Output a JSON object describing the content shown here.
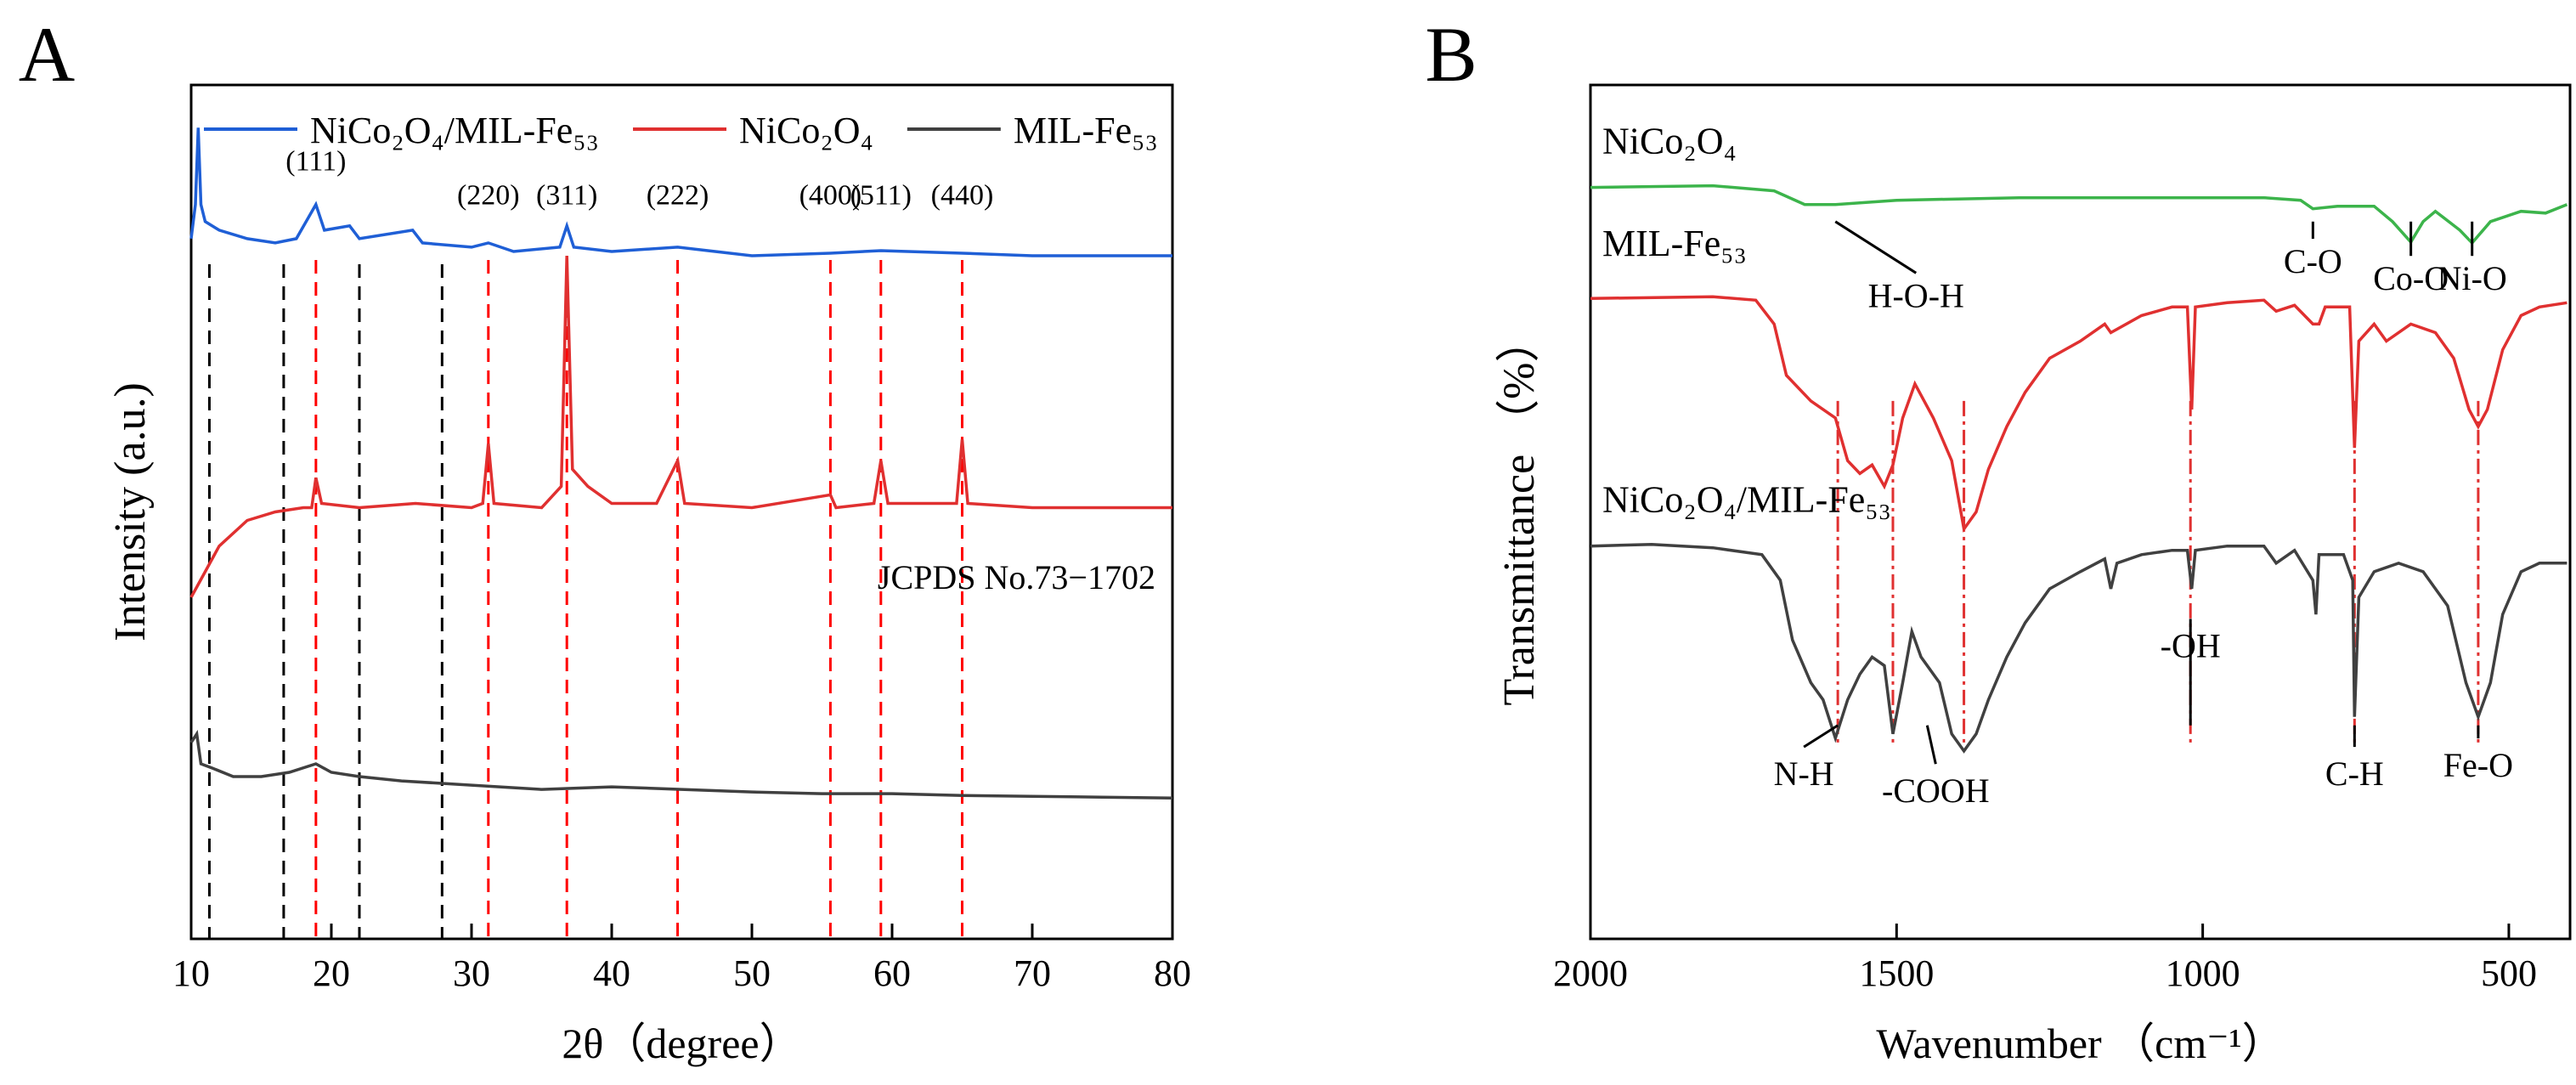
{
  "chart_data": [
    {
      "panel_label": "A",
      "type": "line",
      "xlabel": "2θ（degree）",
      "ylabel": "Intensity (a.u.)",
      "xlim": [
        10,
        80
      ],
      "xticks": [
        10,
        20,
        30,
        40,
        50,
        60,
        70,
        80
      ],
      "grid": false,
      "legend_position": "top",
      "colors": {
        "composite": "#1f5fd6",
        "nico": "#e03030",
        "mil": "#404040",
        "ref_black": "#000000",
        "ref_red": "#ff0000"
      },
      "legend": [
        {
          "name": "NiCo₂O₄/MIL-Fe₅₃",
          "color": "#1f5fd6"
        },
        {
          "name": "NiCo₂O₄",
          "color": "#e03030"
        },
        {
          "name": "MIL-Fe₅₃",
          "color": "#404040"
        }
      ],
      "series": [
        {
          "name": "NiCo₂O₄/MIL-Fe₅₃",
          "color": "#1f5fd6",
          "level": 0.8,
          "points": [
            [
              10.0,
              0.82
            ],
            [
              10.3,
              0.86
            ],
            [
              10.5,
              0.95
            ],
            [
              10.7,
              0.86
            ],
            [
              11,
              0.84
            ],
            [
              12,
              0.83
            ],
            [
              14,
              0.82
            ],
            [
              16,
              0.815
            ],
            [
              17.5,
              0.82
            ],
            [
              18.9,
              0.86
            ],
            [
              19.5,
              0.83
            ],
            [
              21.3,
              0.835
            ],
            [
              22,
              0.82
            ],
            [
              25.8,
              0.83
            ],
            [
              26.5,
              0.815
            ],
            [
              30,
              0.81
            ],
            [
              31.2,
              0.815
            ],
            [
              33,
              0.805
            ],
            [
              36.3,
              0.81
            ],
            [
              36.8,
              0.835
            ],
            [
              37.3,
              0.81
            ],
            [
              40,
              0.805
            ],
            [
              44.7,
              0.81
            ],
            [
              50,
              0.8
            ],
            [
              55.6,
              0.803
            ],
            [
              59.2,
              0.806
            ],
            [
              65,
              0.803
            ],
            [
              70,
              0.8
            ],
            [
              80,
              0.8
            ]
          ]
        },
        {
          "name": "NiCo₂O₄",
          "color": "#e03030",
          "level": 0.4,
          "points": [
            [
              10,
              0.4
            ],
            [
              11,
              0.43
            ],
            [
              12,
              0.46
            ],
            [
              14,
              0.49
            ],
            [
              16,
              0.5
            ],
            [
              18,
              0.505
            ],
            [
              18.6,
              0.505
            ],
            [
              18.9,
              0.54
            ],
            [
              19.3,
              0.51
            ],
            [
              22,
              0.505
            ],
            [
              26,
              0.51
            ],
            [
              30,
              0.505
            ],
            [
              30.8,
              0.51
            ],
            [
              31.2,
              0.58
            ],
            [
              31.6,
              0.51
            ],
            [
              35,
              0.505
            ],
            [
              36.4,
              0.53
            ],
            [
              36.8,
              0.8
            ],
            [
              37.2,
              0.55
            ],
            [
              38.3,
              0.53
            ],
            [
              40,
              0.51
            ],
            [
              43.2,
              0.51
            ],
            [
              44.7,
              0.56
            ],
            [
              45.2,
              0.51
            ],
            [
              50,
              0.505
            ],
            [
              55.6,
              0.52
            ],
            [
              56,
              0.505
            ],
            [
              58.7,
              0.51
            ],
            [
              59.2,
              0.56
            ],
            [
              59.7,
              0.51
            ],
            [
              64.6,
              0.51
            ],
            [
              65,
              0.585
            ],
            [
              65.4,
              0.51
            ],
            [
              70,
              0.505
            ],
            [
              75,
              0.505
            ],
            [
              80,
              0.505
            ]
          ]
        },
        {
          "name": "MIL-Fe₅₃",
          "color": "#404040",
          "level": 0.1,
          "points": [
            [
              10,
              0.23
            ],
            [
              10.4,
              0.24
            ],
            [
              10.7,
              0.205
            ],
            [
              11.5,
              0.2
            ],
            [
              13,
              0.19
            ],
            [
              15,
              0.19
            ],
            [
              17,
              0.195
            ],
            [
              18.9,
              0.205
            ],
            [
              20,
              0.195
            ],
            [
              22,
              0.19
            ],
            [
              25,
              0.185
            ],
            [
              30,
              0.18
            ],
            [
              35,
              0.175
            ],
            [
              40,
              0.178
            ],
            [
              45,
              0.175
            ],
            [
              50,
              0.172
            ],
            [
              55,
              0.17
            ],
            [
              60,
              0.17
            ],
            [
              65,
              0.168
            ],
            [
              70,
              0.167
            ],
            [
              75,
              0.166
            ],
            [
              80,
              0.165
            ]
          ]
        }
      ],
      "reference_lines": {
        "black": [
          11.3,
          16.6,
          22.0,
          27.9
        ],
        "red": [
          18.9,
          31.2,
          36.8,
          44.7,
          55.6,
          59.2,
          65.0
        ]
      },
      "annotations": [
        {
          "text": "(111)",
          "x": 18.9
        },
        {
          "text": "(220)",
          "x": 31.2
        },
        {
          "text": "(311)",
          "x": 36.8
        },
        {
          "text": "(222)",
          "x": 44.7
        },
        {
          "text": "(400)",
          "x": 55.6
        },
        {
          "text": "(511)",
          "x": 59.2
        },
        {
          "text": "(440)",
          "x": 65.0
        }
      ],
      "jcpds_label": "JCPDS No.73−1702"
    },
    {
      "panel_label": "B",
      "type": "line",
      "xlabel": "Wavenumber （cm⁻¹）",
      "ylabel": "Transmittance （%）",
      "xlim": [
        2000,
        400
      ],
      "xticks": [
        2000,
        1500,
        1000,
        500
      ],
      "grid": false,
      "series": [
        {
          "name": "NiCo₂O₄",
          "color": "#3cb44b",
          "points": [
            [
              2000,
              0.88
            ],
            [
              1800,
              0.882
            ],
            [
              1700,
              0.876
            ],
            [
              1650,
              0.86
            ],
            [
              1600,
              0.86
            ],
            [
              1500,
              0.865
            ],
            [
              1300,
              0.868
            ],
            [
              1000,
              0.868
            ],
            [
              900,
              0.868
            ],
            [
              840,
              0.865
            ],
            [
              820,
              0.855
            ],
            [
              780,
              0.858
            ],
            [
              720,
              0.858
            ],
            [
              690,
              0.84
            ],
            [
              660,
              0.816
            ],
            [
              640,
              0.84
            ],
            [
              620,
              0.852
            ],
            [
              580,
              0.83
            ],
            [
              560,
              0.815
            ],
            [
              530,
              0.84
            ],
            [
              480,
              0.852
            ],
            [
              440,
              0.85
            ],
            [
              405,
              0.86
            ]
          ]
        },
        {
          "name": "MIL-Fe₅₃",
          "color": "#e03030",
          "points": [
            [
              2000,
              0.75
            ],
            [
              1800,
              0.752
            ],
            [
              1730,
              0.748
            ],
            [
              1700,
              0.72
            ],
            [
              1680,
              0.66
            ],
            [
              1640,
              0.63
            ],
            [
              1600,
              0.61
            ],
            [
              1580,
              0.56
            ],
            [
              1560,
              0.545
            ],
            [
              1540,
              0.555
            ],
            [
              1520,
              0.53
            ],
            [
              1506,
              0.555
            ],
            [
              1490,
              0.61
            ],
            [
              1470,
              0.65
            ],
            [
              1440,
              0.61
            ],
            [
              1410,
              0.56
            ],
            [
              1390,
              0.48
            ],
            [
              1370,
              0.5
            ],
            [
              1350,
              0.55
            ],
            [
              1320,
              0.6
            ],
            [
              1290,
              0.64
            ],
            [
              1250,
              0.68
            ],
            [
              1200,
              0.7
            ],
            [
              1160,
              0.72
            ],
            [
              1150,
              0.71
            ],
            [
              1100,
              0.73
            ],
            [
              1050,
              0.74
            ],
            [
              1025,
              0.74
            ],
            [
              1018,
              0.62
            ],
            [
              1012,
              0.74
            ],
            [
              960,
              0.745
            ],
            [
              900,
              0.748
            ],
            [
              880,
              0.735
            ],
            [
              850,
              0.742
            ],
            [
              820,
              0.72
            ],
            [
              810,
              0.72
            ],
            [
              800,
              0.74
            ],
            [
              760,
              0.74
            ],
            [
              752,
              0.575
            ],
            [
              745,
              0.7
            ],
            [
              720,
              0.72
            ],
            [
              700,
              0.7
            ],
            [
              660,
              0.72
            ],
            [
              620,
              0.71
            ],
            [
              590,
              0.68
            ],
            [
              565,
              0.62
            ],
            [
              550,
              0.6
            ],
            [
              535,
              0.62
            ],
            [
              510,
              0.69
            ],
            [
              480,
              0.73
            ],
            [
              450,
              0.74
            ],
            [
              405,
              0.745
            ]
          ]
        },
        {
          "name": "NiCo₂O₄/MIL-Fe₅₃",
          "color": "#404040",
          "points": [
            [
              2000,
              0.46
            ],
            [
              1900,
              0.462
            ],
            [
              1800,
              0.458
            ],
            [
              1720,
              0.45
            ],
            [
              1690,
              0.42
            ],
            [
              1670,
              0.35
            ],
            [
              1640,
              0.3
            ],
            [
              1620,
              0.28
            ],
            [
              1600,
              0.235
            ],
            [
              1580,
              0.28
            ],
            [
              1560,
              0.31
            ],
            [
              1540,
              0.33
            ],
            [
              1520,
              0.32
            ],
            [
              1506,
              0.24
            ],
            [
              1490,
              0.3
            ],
            [
              1475,
              0.36
            ],
            [
              1460,
              0.33
            ],
            [
              1430,
              0.3
            ],
            [
              1410,
              0.24
            ],
            [
              1390,
              0.22
            ],
            [
              1370,
              0.24
            ],
            [
              1350,
              0.28
            ],
            [
              1320,
              0.33
            ],
            [
              1290,
              0.37
            ],
            [
              1250,
              0.41
            ],
            [
              1200,
              0.43
            ],
            [
              1160,
              0.445
            ],
            [
              1150,
              0.41
            ],
            [
              1140,
              0.44
            ],
            [
              1100,
              0.45
            ],
            [
              1050,
              0.455
            ],
            [
              1025,
              0.455
            ],
            [
              1018,
              0.41
            ],
            [
              1012,
              0.455
            ],
            [
              960,
              0.46
            ],
            [
              900,
              0.46
            ],
            [
              880,
              0.44
            ],
            [
              850,
              0.455
            ],
            [
              820,
              0.42
            ],
            [
              815,
              0.38
            ],
            [
              810,
              0.45
            ],
            [
              770,
              0.45
            ],
            [
              755,
              0.42
            ],
            [
              752,
              0.26
            ],
            [
              745,
              0.4
            ],
            [
              720,
              0.43
            ],
            [
              680,
              0.44
            ],
            [
              640,
              0.43
            ],
            [
              600,
              0.39
            ],
            [
              570,
              0.3
            ],
            [
              550,
              0.26
            ],
            [
              530,
              0.3
            ],
            [
              510,
              0.38
            ],
            [
              480,
              0.43
            ],
            [
              450,
              0.44
            ],
            [
              405,
              0.44
            ]
          ]
        }
      ],
      "reference_lines": {
        "color": "#e03030",
        "x": [
          1596,
          1506,
          1390,
          1020,
          752,
          550
        ]
      },
      "curve_labels": [
        "NiCo₂O₄",
        "MIL-Fe₅₃",
        "NiCo₂O₄/MIL-Fe₅₃"
      ],
      "annotations": [
        {
          "text": "H-O-H",
          "x": 1600,
          "curve": 0
        },
        {
          "text": "C-O",
          "x": 820,
          "curve": 0
        },
        {
          "text": "Co-O",
          "x": 660,
          "curve": 0
        },
        {
          "text": "Ni-O",
          "x": 560,
          "curve": 0
        },
        {
          "text": "N-H",
          "x": 1596,
          "curve": 2
        },
        {
          "text": "-COOH",
          "x": 1450,
          "curve": 2
        },
        {
          "text": "-OH",
          "x": 1020,
          "curve": 2
        },
        {
          "text": "C-H",
          "x": 752,
          "curve": 2
        },
        {
          "text": "Fe-O",
          "x": 550,
          "curve": 2
        }
      ]
    }
  ]
}
